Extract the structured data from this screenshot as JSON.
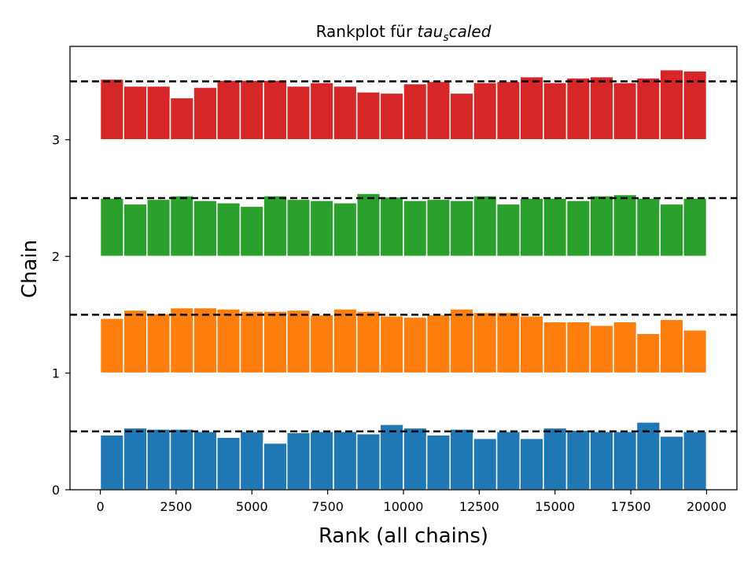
{
  "chart_data": {
    "type": "bar",
    "title": "Rankplot für tau_scaled",
    "title_parts": {
      "prefix": "Rankplot für ",
      "base": "tau",
      "sub": "s",
      "rest": "caled"
    },
    "xlabel": "Rank (all chains)",
    "ylabel": "Chain",
    "xlim": [
      -1000,
      21000
    ],
    "ylim": [
      0,
      3.8
    ],
    "xticks": [
      0,
      2500,
      5000,
      7500,
      10000,
      12500,
      15000,
      17500,
      20000
    ],
    "xtick_labels": [
      "0",
      "2500",
      "5000",
      "7500",
      "10000",
      "12500",
      "15000",
      "17500",
      "20000"
    ],
    "yticks": [
      0,
      1,
      2,
      3
    ],
    "ytick_labels": [
      "0",
      "1",
      "2",
      "3"
    ],
    "bin_edges_start": 0,
    "bin_width": 769.2,
    "reference_level": 0.5,
    "grid": false,
    "series": [
      {
        "chain": 0,
        "color": "#1f77b4",
        "values": [
          0.47,
          0.53,
          0.52,
          0.52,
          0.5,
          0.45,
          0.5,
          0.4,
          0.49,
          0.5,
          0.5,
          0.48,
          0.56,
          0.53,
          0.47,
          0.52,
          0.44,
          0.5,
          0.44,
          0.53,
          0.51,
          0.5,
          0.5,
          0.58,
          0.46,
          0.5
        ]
      },
      {
        "chain": 1,
        "color": "#ff7f0e",
        "values": [
          0.47,
          0.54,
          0.51,
          0.56,
          0.56,
          0.55,
          0.53,
          0.53,
          0.54,
          0.5,
          0.55,
          0.53,
          0.49,
          0.48,
          0.5,
          0.55,
          0.52,
          0.52,
          0.49,
          0.44,
          0.44,
          0.41,
          0.44,
          0.34,
          0.46,
          0.37
        ]
      },
      {
        "chain": 2,
        "color": "#2ca02c",
        "values": [
          0.5,
          0.45,
          0.49,
          0.52,
          0.48,
          0.46,
          0.43,
          0.52,
          0.49,
          0.48,
          0.46,
          0.54,
          0.51,
          0.48,
          0.49,
          0.48,
          0.52,
          0.45,
          0.5,
          0.5,
          0.48,
          0.52,
          0.53,
          0.5,
          0.45,
          0.5
        ]
      },
      {
        "chain": 3,
        "color": "#d62728",
        "values": [
          0.52,
          0.46,
          0.46,
          0.36,
          0.45,
          0.51,
          0.51,
          0.51,
          0.46,
          0.49,
          0.46,
          0.41,
          0.4,
          0.48,
          0.5,
          0.4,
          0.49,
          0.5,
          0.54,
          0.49,
          0.53,
          0.54,
          0.49,
          0.53,
          0.6,
          0.59
        ]
      }
    ]
  }
}
